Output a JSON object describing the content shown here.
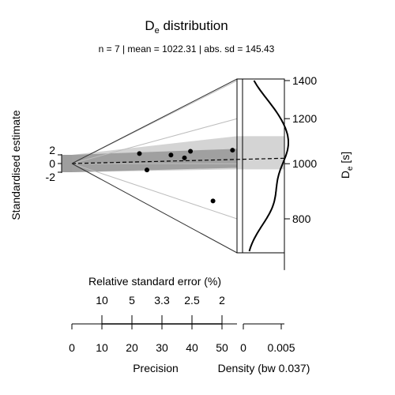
{
  "chart_data": {
    "type": "scatter",
    "subtype": "abanico-plot",
    "title": {
      "main": "D",
      "sub": "e",
      "rest": " distribution"
    },
    "subtitle": "n = 7 | mean = 1022.31 | abs. sd = 145.43",
    "left_axis": {
      "label": "Standardised estimate",
      "ticks": [
        {
          "value": 2,
          "label": "2"
        },
        {
          "value": 0,
          "label": "0"
        },
        {
          "value": -2,
          "label": "-2"
        }
      ]
    },
    "right_axis": {
      "label": {
        "main": "D",
        "sub": "e",
        "rest": " [s]"
      },
      "range": [
        650,
        1400
      ],
      "ticks": [
        {
          "value": 1400,
          "label": "1400"
        },
        {
          "value": 1200,
          "label": "1200"
        },
        {
          "value": 1000,
          "label": "1000"
        },
        {
          "value": 800,
          "label": "800"
        }
      ]
    },
    "rse_axis": {
      "label": "Relative standard error (%)",
      "ticks": [
        {
          "value": 10,
          "label": "10"
        },
        {
          "value": 5,
          "label": "5"
        },
        {
          "value": 3.333,
          "label": "3.3"
        },
        {
          "value": 2.5,
          "label": "2.5"
        },
        {
          "value": 2,
          "label": "2"
        }
      ]
    },
    "precision_axis": {
      "label": "Precision",
      "range": [
        0,
        55
      ],
      "ticks": [
        {
          "value": 0,
          "label": "0"
        },
        {
          "value": 10,
          "label": "10"
        },
        {
          "value": 20,
          "label": "20"
        },
        {
          "value": 30,
          "label": "30"
        },
        {
          "value": 40,
          "label": "40"
        },
        {
          "value": 50,
          "label": "50"
        }
      ]
    },
    "density_axis": {
      "label": "Density (bw 0.037)",
      "ticks": [
        {
          "value": 0,
          "label": "0"
        },
        {
          "value": 0.005,
          "label": "0.005"
        }
      ]
    },
    "points": [
      {
        "precision": 22.5,
        "de": 1105
      },
      {
        "precision": 25.0,
        "de": 945
      },
      {
        "precision": 33.0,
        "de": 1060
      },
      {
        "precision": 37.5,
        "de": 1035
      },
      {
        "precision": 39.5,
        "de": 1072
      },
      {
        "precision": 47.0,
        "de": 838
      },
      {
        "precision": 53.5,
        "de": 1058
      }
    ],
    "mean_line": 1022.31,
    "density_peaks_de": [
      1070,
      860,
      1240
    ]
  }
}
